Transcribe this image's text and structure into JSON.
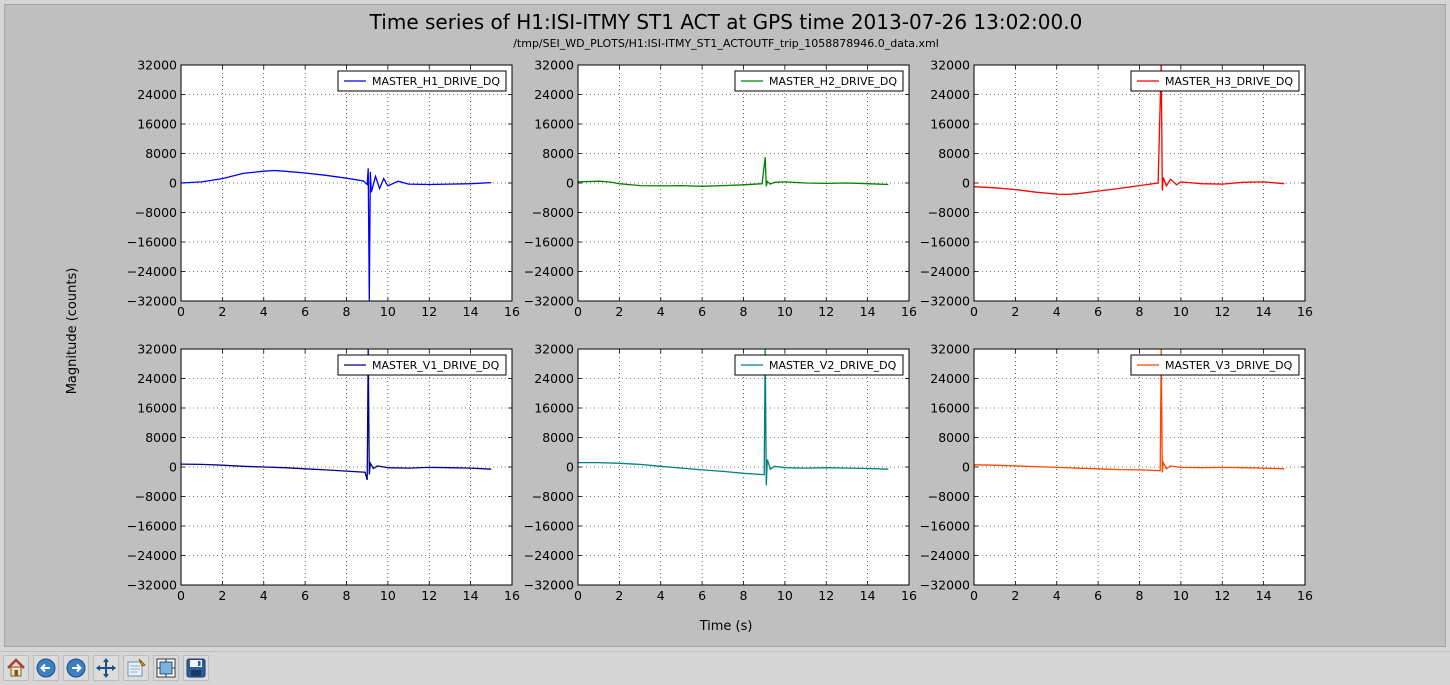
{
  "window": {
    "title": "Time series of H1:ISI-ITMY ST1 ACT at GPS time 2013-07-26 13:02:00.0",
    "subtitle": "/tmp/SEI_WD_PLOTS/H1:ISI-ITMY_ST1_ACTOUTF_trip_1058878946.0_data.xml",
    "xlabel": "Time (s)",
    "ylabel": "Magnitude (counts)"
  },
  "toolbar": {
    "buttons": [
      {
        "name": "home-button",
        "icon": "home-icon"
      },
      {
        "name": "back-button",
        "icon": "arrow-left-icon"
      },
      {
        "name": "forward-button",
        "icon": "arrow-right-icon"
      },
      {
        "name": "pan-button",
        "icon": "move-icon"
      },
      {
        "name": "zoom-button",
        "icon": "zoom-rect-icon"
      },
      {
        "name": "subplots-button",
        "icon": "subplots-icon"
      },
      {
        "name": "save-button",
        "icon": "floppy-disk-icon"
      }
    ]
  },
  "chart_data": [
    {
      "type": "line",
      "legend": "MASTER_H1_DRIVE_DQ",
      "color": "#0000ff",
      "xlim": [
        0,
        16
      ],
      "ylim": [
        -32000,
        32000
      ],
      "grid": true,
      "legend_position": "top-right",
      "xticks": [
        0,
        2,
        4,
        6,
        8,
        10,
        12,
        14,
        16
      ],
      "yticks": [
        -32000,
        -24000,
        -16000,
        -8000,
        0,
        8000,
        16000,
        24000,
        32000
      ],
      "series": [
        {
          "x": [
            0,
            1,
            2,
            3,
            4,
            4.5,
            5,
            6,
            7,
            8,
            8.8,
            9.0,
            9.05,
            9.1,
            9.15,
            9.2,
            9.4,
            9.6,
            9.8,
            10,
            10.5,
            11,
            12,
            13,
            14,
            15
          ],
          "y": [
            0,
            300,
            1200,
            2600,
            3200,
            3400,
            3200,
            2700,
            2100,
            1300,
            600,
            -400,
            4000,
            -32000,
            3000,
            -2500,
            1800,
            -1500,
            1200,
            -800,
            500,
            -300,
            -400,
            -300,
            -200,
            100
          ]
        }
      ]
    },
    {
      "type": "line",
      "legend": "MASTER_H2_DRIVE_DQ",
      "color": "#008000",
      "xlim": [
        0,
        16
      ],
      "ylim": [
        -32000,
        32000
      ],
      "grid": true,
      "legend_position": "top-right",
      "xticks": [
        0,
        2,
        4,
        6,
        8,
        10,
        12,
        14,
        16
      ],
      "yticks": [
        -32000,
        -24000,
        -16000,
        -8000,
        0,
        8000,
        16000,
        24000,
        32000
      ],
      "series": [
        {
          "x": [
            0,
            1,
            1.5,
            2,
            3,
            4,
            5,
            6,
            7,
            8,
            8.9,
            9.05,
            9.1,
            9.15,
            9.3,
            9.5,
            10,
            11,
            12,
            13,
            14,
            15
          ],
          "y": [
            300,
            500,
            300,
            -200,
            -700,
            -800,
            -700,
            -900,
            -700,
            -500,
            -200,
            7000,
            -900,
            400,
            -300,
            200,
            300,
            0,
            -100,
            0,
            -200,
            -400
          ]
        }
      ]
    },
    {
      "type": "line",
      "legend": "MASTER_H3_DRIVE_DQ",
      "color": "#ff0000",
      "xlim": [
        0,
        16
      ],
      "ylim": [
        -32000,
        32000
      ],
      "grid": true,
      "legend_position": "top-right",
      "xticks": [
        0,
        2,
        4,
        6,
        8,
        10,
        12,
        14,
        16
      ],
      "yticks": [
        -32000,
        -24000,
        -16000,
        -8000,
        0,
        8000,
        16000,
        24000,
        32000
      ],
      "series": [
        {
          "x": [
            0,
            1,
            2,
            3,
            4,
            4.5,
            5,
            6,
            7,
            8,
            8.9,
            9.05,
            9.1,
            9.15,
            9.3,
            9.5,
            9.8,
            10,
            11,
            12,
            13,
            14,
            15
          ],
          "y": [
            -1000,
            -1300,
            -1800,
            -2500,
            -3000,
            -3100,
            -2900,
            -2200,
            -1500,
            -700,
            0,
            32000,
            -2000,
            1500,
            -800,
            1000,
            -500,
            300,
            -200,
            -300,
            200,
            300,
            -200
          ]
        }
      ]
    },
    {
      "type": "line",
      "legend": "MASTER_V1_DRIVE_DQ",
      "color": "#00008b",
      "xlim": [
        0,
        16
      ],
      "ylim": [
        -32000,
        32000
      ],
      "grid": true,
      "legend_position": "top-right",
      "xticks": [
        0,
        2,
        4,
        6,
        8,
        10,
        12,
        14,
        16
      ],
      "yticks": [
        -32000,
        -24000,
        -16000,
        -8000,
        0,
        8000,
        16000,
        24000,
        32000
      ],
      "series": [
        {
          "x": [
            0,
            1,
            2,
            3,
            4,
            5,
            6,
            7,
            8,
            8.9,
            9.0,
            9.05,
            9.1,
            9.15,
            9.3,
            9.5,
            10,
            11,
            12,
            13,
            14,
            15
          ],
          "y": [
            800,
            700,
            500,
            200,
            0,
            -200,
            -500,
            -800,
            -1100,
            -1400,
            -3500,
            32000,
            -2000,
            1000,
            -400,
            300,
            -200,
            -300,
            -100,
            -200,
            -300,
            -600
          ]
        }
      ]
    },
    {
      "type": "line",
      "legend": "MASTER_V2_DRIVE_DQ",
      "color": "#008080",
      "xlim": [
        0,
        16
      ],
      "ylim": [
        -32000,
        32000
      ],
      "grid": true,
      "legend_position": "top-right",
      "xticks": [
        0,
        2,
        4,
        6,
        8,
        10,
        12,
        14,
        16
      ],
      "yticks": [
        -32000,
        -24000,
        -16000,
        -8000,
        0,
        8000,
        16000,
        24000,
        32000
      ],
      "series": [
        {
          "x": [
            0,
            1,
            2,
            3,
            4,
            5,
            6,
            7,
            8,
            9.0,
            9.05,
            9.1,
            9.15,
            9.3,
            9.5,
            10,
            11,
            12,
            13,
            14,
            15
          ],
          "y": [
            1200,
            1200,
            1000,
            700,
            200,
            -300,
            -800,
            -1200,
            -1700,
            -2100,
            32000,
            -5000,
            2000,
            -600,
            200,
            -200,
            -300,
            -200,
            -300,
            -400,
            -600
          ]
        }
      ]
    },
    {
      "type": "line",
      "legend": "MASTER_V3_DRIVE_DQ",
      "color": "#ff4500",
      "xlim": [
        0,
        16
      ],
      "ylim": [
        -32000,
        32000
      ],
      "grid": true,
      "legend_position": "top-right",
      "xticks": [
        0,
        2,
        4,
        6,
        8,
        10,
        12,
        14,
        16
      ],
      "yticks": [
        -32000,
        -24000,
        -16000,
        -8000,
        0,
        8000,
        16000,
        24000,
        32000
      ],
      "series": [
        {
          "x": [
            0,
            1,
            2,
            3,
            4,
            5,
            6,
            7,
            8,
            9.0,
            9.05,
            9.1,
            9.15,
            9.3,
            9.5,
            10,
            11,
            12,
            13,
            14,
            15
          ],
          "y": [
            600,
            500,
            300,
            100,
            -100,
            -300,
            -500,
            -700,
            -800,
            -1000,
            32000,
            -1500,
            1200,
            -500,
            300,
            -100,
            -200,
            -100,
            -200,
            -300,
            -500
          ]
        }
      ]
    }
  ]
}
